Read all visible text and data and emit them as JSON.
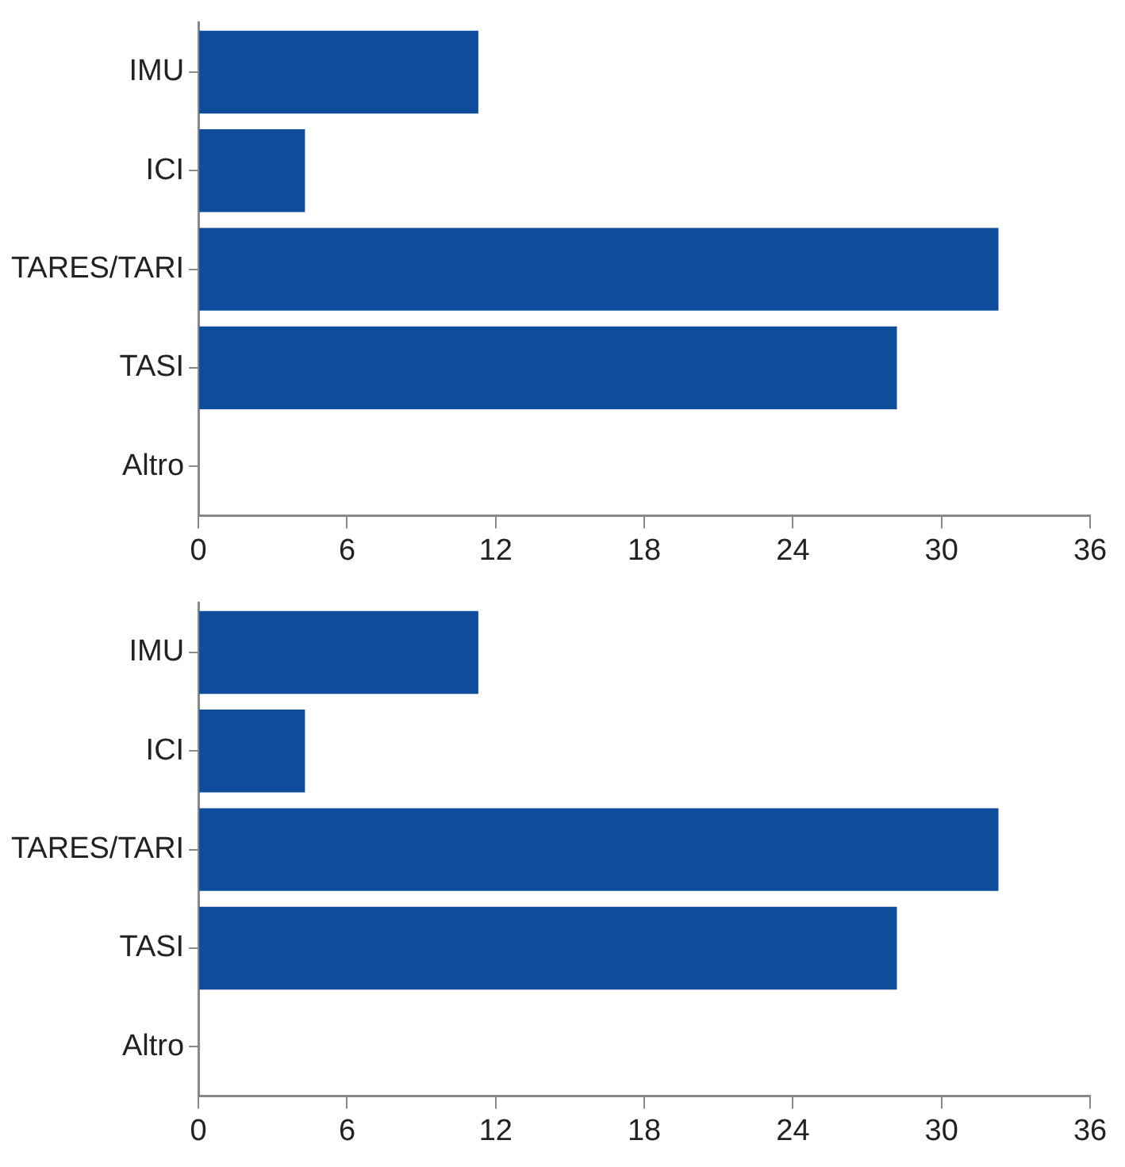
{
  "chart_data": [
    {
      "type": "bar",
      "orientation": "horizontal",
      "categories": [
        "IMU",
        "ICI",
        "TARES/TARI",
        "TASI",
        "Altro"
      ],
      "color": "#0f4c9b",
      "values": [
        11.3,
        4.3,
        32.3,
        28.2,
        0
      ],
      "xlim": [
        0,
        36
      ],
      "xticks": [
        0,
        6,
        12,
        18,
        24,
        30,
        36
      ],
      "grid": false,
      "legend": false
    },
    {
      "type": "bar",
      "orientation": "horizontal",
      "categories": [
        "IMU",
        "ICI",
        "TARES/TARI",
        "TASI",
        "Altro"
      ],
      "color": "#0f4c9b",
      "values": [
        11.3,
        4.3,
        32.3,
        28.2,
        0
      ],
      "xlim": [
        0,
        36
      ],
      "xticks": [
        0,
        6,
        12,
        18,
        24,
        30,
        36
      ],
      "grid": false,
      "legend": false
    }
  ]
}
